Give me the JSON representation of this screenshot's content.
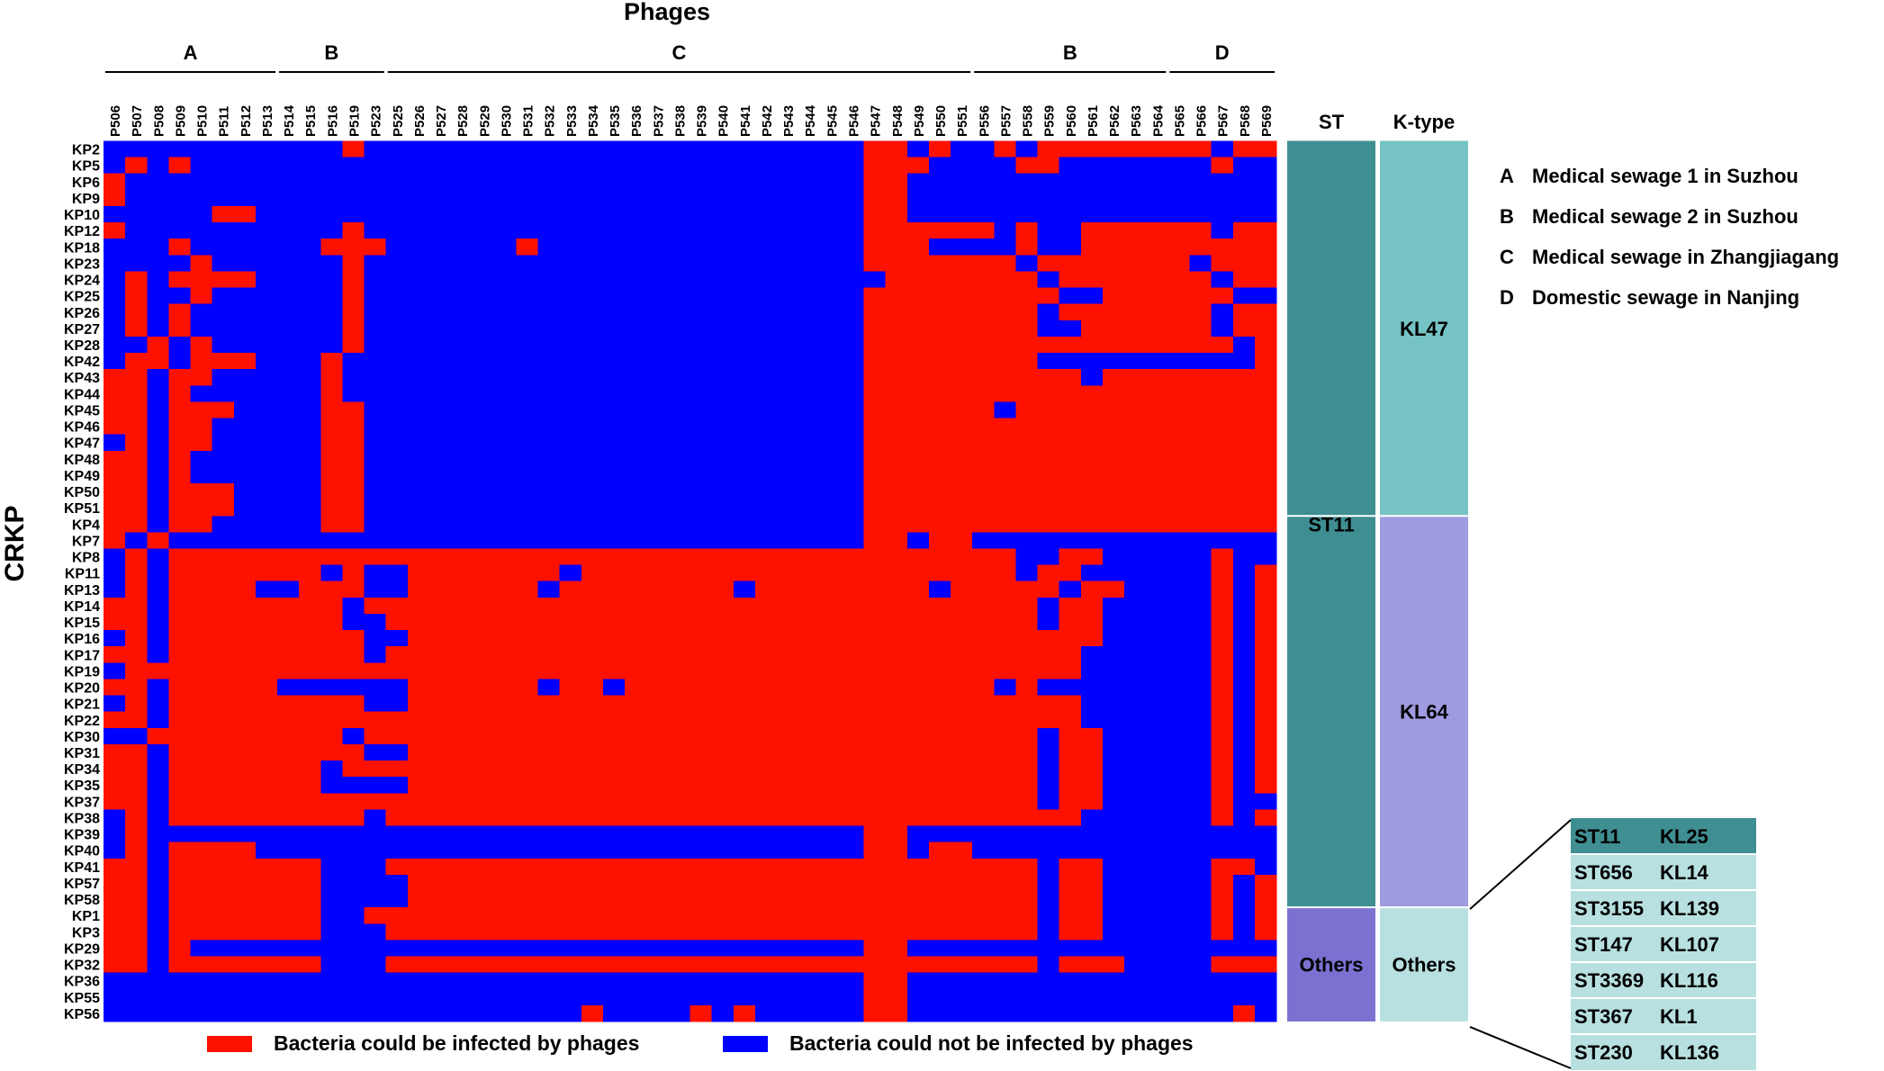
{
  "chart_data": {
    "type": "heatmap",
    "title": "Phages",
    "ylabel": "CRKP",
    "phages": [
      "P506",
      "P507",
      "P508",
      "P509",
      "P510",
      "P511",
      "P512",
      "P513",
      "P514",
      "P515",
      "P516",
      "P519",
      "P523",
      "P525",
      "P526",
      "P527",
      "P528",
      "P529",
      "P530",
      "P531",
      "P532",
      "P533",
      "P534",
      "P535",
      "P536",
      "P537",
      "P538",
      "P539",
      "P540",
      "P541",
      "P542",
      "P543",
      "P544",
      "P545",
      "P546",
      "P547",
      "P548",
      "P549",
      "P550",
      "P551",
      "P556",
      "P557",
      "P558",
      "P559",
      "P560",
      "P561",
      "P562",
      "P563",
      "P564",
      "P565",
      "P566",
      "P567",
      "P568",
      "P569"
    ],
    "strains": [
      "KP2",
      "KP5",
      "KP6",
      "KP9",
      "KP10",
      "KP12",
      "KP18",
      "KP23",
      "KP24",
      "KP25",
      "KP26",
      "KP27",
      "KP28",
      "KP42",
      "KP43",
      "KP44",
      "KP45",
      "KP46",
      "KP47",
      "KP48",
      "KP49",
      "KP50",
      "KP51",
      "KP4",
      "KP7",
      "KP8",
      "KP11",
      "KP13",
      "KP14",
      "KP15",
      "KP16",
      "KP17",
      "KP19",
      "KP20",
      "KP21",
      "KP22",
      "KP30",
      "KP31",
      "KP34",
      "KP35",
      "KP37",
      "KP38",
      "KP39",
      "KP40",
      "KP41",
      "KP57",
      "KP58",
      "KP1",
      "KP3",
      "KP29",
      "KP32",
      "KP36",
      "KP55",
      "KP56"
    ],
    "groups": [
      {
        "label": "A",
        "start": 0,
        "end": 7
      },
      {
        "label": "B",
        "start": 8,
        "end": 12
      },
      {
        "label": "C",
        "start": 13,
        "end": 39
      },
      {
        "label": "B",
        "start": 40,
        "end": 48
      },
      {
        "label": "D",
        "start": 49,
        "end": 53
      }
    ],
    "matrix": [
      "000000000001000000000000000000000001101001011111111011",
      "010100000000000000000000000000000001110000110000000100",
      "100000000000000000000000000000000001100000000000000000",
      "100000000000000000000000000000000001100000000000000000",
      "000001100000000000000000000000000001100000000000000000",
      "100000000001000000000000000000000001111110100111111011",
      "000100000011100000010000000000000001110000100111111111",
      "000010000001000000000000000000000001111111011111110111",
      "010111100001000000000000000000000000111111101111111011",
      "010010000001000000000000000000000001111111110011111100",
      "010100000001000000000000000000000001111111101111111011",
      "010100000001000000000000000000000001111111100111111011",
      "001010000001000000000000000000000001111111111111111101",
      "011011100010000000000000000000000001111111100000000001",
      "110110000010000000000000000000000001111111111011111111",
      "110100000010000000000000000000000001111111111111111111",
      "110111000011000000000000000000000001111110111111111111",
      "110110000011000000000000000000000001111111111111111111",
      "010110000011000000000000000000000001111111111111111111",
      "110100000011000000000000000000000001111111111111111111",
      "110100000011000000000000000000000001111111111111111111",
      "110111000011000000000000000000000001111111111111111111",
      "110111000011000000000000000000000001111111111111111111",
      "110110000011000000000000000000000001111111111111111111",
      "101000000000000000000000000000000001101100000000000000",
      "010111111111111111111111111111111111111111001100000100",
      "010111111101001111111011111111111111111111011000000101",
      "010111100111001111110111111110111111110111110110000101",
      "110111111110111111111111111111111111111111101100000101",
      "110111111110011111111111111111111111111111101100000101",
      "010111111111001111111111111111111111111111111100000101",
      "110111111111011111111111111111111111111111111000000101",
      "011111111111111111111111111111111111111111111000000101",
      "110111110000001111110110111111111111111110100000000101",
      "010111111111001111111111111111111111111111111000000101",
      "110111111111111111111111111111111111111111111000000101",
      "001111111110111111111111111111111111111111101100000101",
      "110111111111001111111111111111111111111111101100000101",
      "110111111101111111111111111111111111111111101100000101",
      "110111111100001111111111111111111111111111101100000101",
      "110111111111111111111111111111111111111111101100000100",
      "010111111111011111111111111111111111111111111000000101",
      "010000000000000000000000000000000001100000000000000000",
      "010111100000000000000000000000000001101100000000000000",
      "110111111100011111111111111111111111111111101100000110",
      "110111111100001111111111111111111111111111101100000101",
      "110111111100001111111111111111111111111111101100000101",
      "110111111100111111111111111111111111111111101100000101",
      "110111111100011111111111111111111111111111101100000101",
      "110100000000000000000000000000000001100000000000000000",
      "110111111100011111111111111111111111111111101110000111",
      "000000000000000000000000000000000001100000000000000000",
      "000000000000000000000000000000000001100000000000000000",
      "000000000000000000000010000101000001100000000000000010"
    ],
    "legend": [
      {
        "label": "Bacteria could be infected by phages",
        "color": "#ff1100"
      },
      {
        "label": "Bacteria could not be infected by phages",
        "color": "#0000ff"
      }
    ],
    "annotation_columns": [
      {
        "title": "ST",
        "segments": [
          {
            "label": "ST11",
            "start": 0,
            "end": 46,
            "color": "#3f8e92"
          },
          {
            "label": "Others",
            "start": 47,
            "end": 53,
            "color": "#7b71d1"
          }
        ]
      },
      {
        "title": "K-type",
        "segments": [
          {
            "label": "KL47",
            "start": 0,
            "end": 22,
            "color": "#75c3c5"
          },
          {
            "label": "KL64",
            "start": 23,
            "end": 46,
            "color": "#9f9be0"
          },
          {
            "label": "Others",
            "start": 47,
            "end": 53,
            "color": "#b8e0e0"
          }
        ]
      }
    ],
    "group_key": [
      {
        "letter": "A",
        "text": "Medical sewage 1 in Suzhou"
      },
      {
        "letter": "B",
        "text": "Medical sewage 2 in Suzhou"
      },
      {
        "letter": "C",
        "text": "Medical sewage in Zhangjiagang"
      },
      {
        "letter": "D",
        "text": "Domestic sewage in Nanjing"
      }
    ],
    "others_table": {
      "header": [
        "ST11",
        "KL25"
      ],
      "rows": [
        [
          "ST656",
          "KL14"
        ],
        [
          "ST3155",
          "KL139"
        ],
        [
          "ST147",
          "KL107"
        ],
        [
          "ST3369",
          "KL116"
        ],
        [
          "ST367",
          "KL1"
        ],
        [
          "ST230",
          "KL136"
        ]
      ],
      "header_color": "#3f8e92",
      "row_color": "#b8e0e0"
    }
  }
}
